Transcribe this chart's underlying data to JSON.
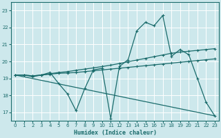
{
  "xlabel": "Humidex (Indice chaleur)",
  "xlim": [
    -0.5,
    23.5
  ],
  "ylim": [
    16.5,
    23.5
  ],
  "yticks": [
    17,
    18,
    19,
    20,
    21,
    22,
    23
  ],
  "xticks": [
    0,
    1,
    2,
    3,
    4,
    5,
    6,
    7,
    8,
    9,
    10,
    11,
    12,
    13,
    14,
    15,
    16,
    17,
    18,
    19,
    20,
    21,
    22,
    23
  ],
  "bg_color": "#cde8ec",
  "line_color": "#1a6b6b",
  "grid_color": "#ffffff",
  "lines": [
    {
      "x": [
        0,
        1,
        2,
        3,
        4,
        5,
        6,
        7,
        8,
        9,
        10,
        11,
        12,
        13,
        14,
        15,
        16,
        17,
        18,
        19,
        20,
        21,
        22,
        23
      ],
      "y": [
        19.2,
        19.2,
        19.1,
        19.2,
        19.35,
        18.7,
        18.1,
        17.1,
        18.4,
        19.5,
        19.6,
        16.65,
        19.7,
        20.1,
        21.8,
        22.3,
        22.1,
        22.7,
        20.3,
        20.7,
        20.4,
        19.0,
        17.6,
        16.8
      ],
      "marker": true
    },
    {
      "x": [
        0,
        1,
        2,
        3,
        4,
        5,
        6,
        7,
        8,
        9,
        10,
        11,
        12,
        13,
        14,
        15,
        16,
        17,
        18,
        19,
        20,
        21,
        22,
        23
      ],
      "y": [
        19.2,
        19.2,
        19.15,
        19.2,
        19.25,
        19.3,
        19.32,
        19.35,
        19.4,
        19.45,
        19.5,
        19.55,
        19.6,
        19.65,
        19.7,
        19.75,
        19.8,
        19.85,
        19.9,
        19.95,
        20.0,
        20.05,
        20.1,
        20.15
      ],
      "marker": true
    },
    {
      "x": [
        0,
        1,
        2,
        3,
        4,
        5,
        6,
        7,
        8,
        9,
        10,
        11,
        12,
        13,
        14,
        15,
        16,
        17,
        18,
        19,
        20,
        21,
        22,
        23
      ],
      "y": [
        19.2,
        19.2,
        19.15,
        19.2,
        19.28,
        19.35,
        19.4,
        19.48,
        19.55,
        19.62,
        19.7,
        19.78,
        19.88,
        19.98,
        20.08,
        20.18,
        20.28,
        20.38,
        20.48,
        20.55,
        20.6,
        20.65,
        20.7,
        20.75
      ],
      "marker": true
    },
    {
      "x": [
        0,
        23
      ],
      "y": [
        19.2,
        16.8
      ],
      "marker": false
    }
  ]
}
